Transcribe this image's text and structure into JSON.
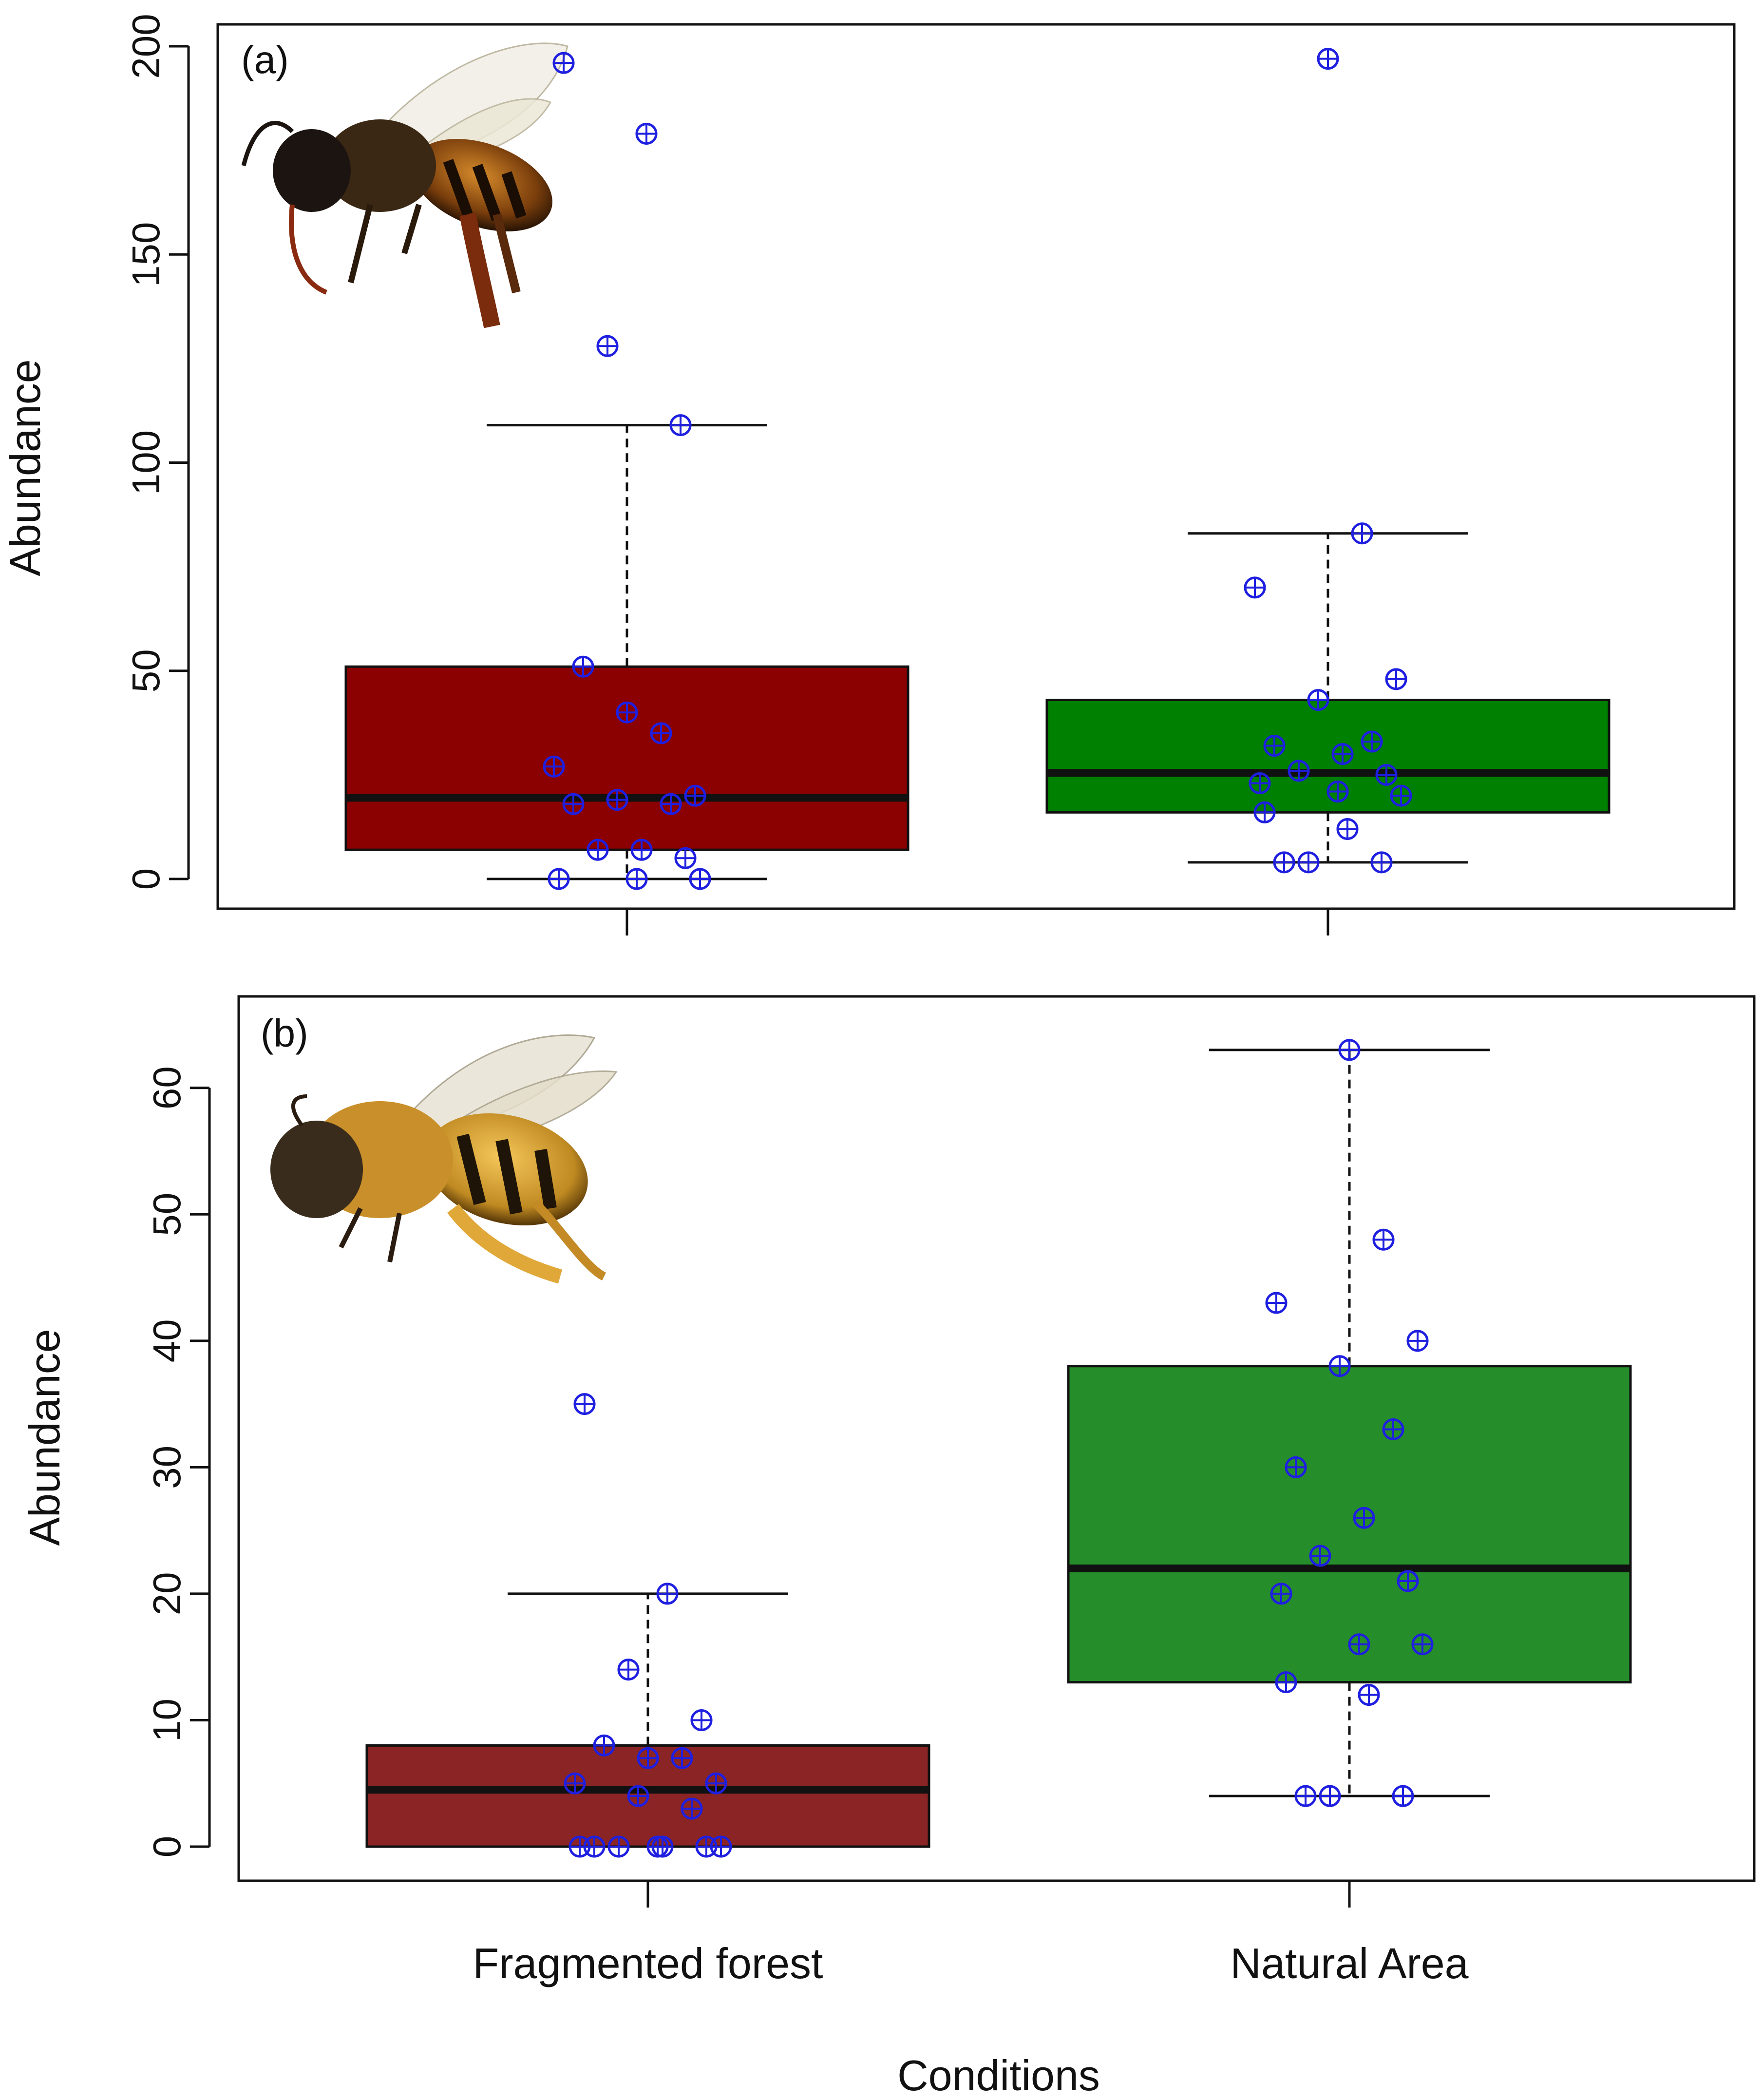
{
  "x_axis_title": "Conditions",
  "y_axis_title": "Abundance",
  "colors": {
    "fragmented_box": "#8B0000",
    "natural_box": "#008000",
    "fragmented_box_b": "#8B2525",
    "natural_box_b": "#258E2A",
    "points": "#1F1FE0",
    "median": "#111111"
  },
  "chart_data": [
    {
      "panel": "(a)",
      "type": "box",
      "title": "",
      "xlabel": "",
      "ylabel": "Abundance",
      "ylim": [
        0,
        200
      ],
      "yticks": [
        0,
        50,
        100,
        150,
        200
      ],
      "categories": [
        "Fragmented forest",
        "Natural Area"
      ],
      "boxes": [
        {
          "category": "Fragmented forest",
          "q1": 7,
          "median": 19.5,
          "q3": 51,
          "whisker_low": 0,
          "whisker_high": 109
        },
        {
          "category": "Natural Area",
          "q1": 16,
          "median": 25.5,
          "q3": 43,
          "whisker_low": 4,
          "whisker_high": 83
        }
      ],
      "points": [
        {
          "category": "Fragmented forest",
          "values": [
            196,
            179,
            128,
            109,
            51,
            40,
            35,
            27,
            20,
            19,
            18,
            18,
            7,
            7,
            5,
            0,
            0,
            0
          ]
        },
        {
          "category": "Natural Area",
          "values": [
            197,
            83,
            70,
            48,
            43,
            33,
            32,
            30,
            26,
            25,
            23,
            21,
            20,
            16,
            12,
            4,
            4,
            4
          ]
        }
      ],
      "image": "honey-bee-photo"
    },
    {
      "panel": "(b)",
      "type": "box",
      "title": "",
      "xlabel": "Conditions",
      "ylabel": "Abundance",
      "ylim": [
        0,
        65
      ],
      "yticks": [
        0,
        10,
        20,
        30,
        40,
        50,
        60
      ],
      "categories": [
        "Fragmented forest",
        "Natural Area"
      ],
      "boxes": [
        {
          "category": "Fragmented forest",
          "q1": 0,
          "median": 4.5,
          "q3": 8,
          "whisker_low": 0,
          "whisker_high": 20
        },
        {
          "category": "Natural Area",
          "q1": 13,
          "median": 22,
          "q3": 38,
          "whisker_low": 4,
          "whisker_high": 63
        }
      ],
      "points": [
        {
          "category": "Fragmented forest",
          "values": [
            35,
            20,
            14,
            10,
            8,
            7,
            7,
            5,
            5,
            4,
            3,
            0,
            0,
            0,
            0,
            0,
            0,
            0
          ]
        },
        {
          "category": "Natural Area",
          "values": [
            63,
            48,
            43,
            40,
            38,
            33,
            30,
            26,
            23,
            21,
            20,
            16,
            16,
            13,
            12,
            4,
            4,
            4
          ]
        }
      ],
      "image": "bumble-bee-photo"
    }
  ]
}
